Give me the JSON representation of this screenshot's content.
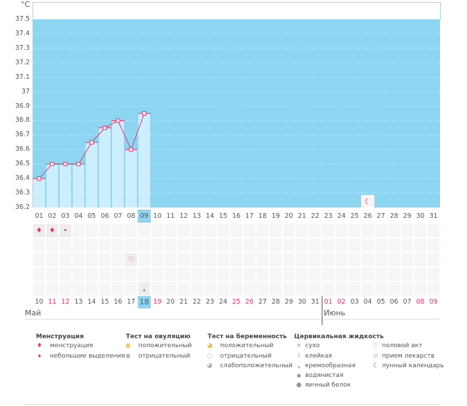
{
  "unit": "°C",
  "y_ticks": [
    "37.5",
    "37.4",
    "37.3",
    "37.2",
    "37.1",
    "37",
    "36.9",
    "36.8",
    "36.7",
    "36.6",
    "36.5",
    "36.4",
    "36.3",
    "36.2"
  ],
  "y_range": [
    36.2,
    37.5
  ],
  "days_top": [
    "01",
    "02",
    "03",
    "04",
    "05",
    "06",
    "07",
    "08",
    "09",
    "10",
    "11",
    "12",
    "13",
    "14",
    "15",
    "16",
    "17",
    "18",
    "19",
    "20",
    "21",
    "22",
    "23",
    "24",
    "25",
    "26",
    "27",
    "28",
    "29",
    "30",
    "31"
  ],
  "current_day_index": 8,
  "temperatures": [
    36.4,
    36.5,
    36.5,
    36.5,
    36.65,
    36.75,
    36.8,
    36.6,
    36.85
  ],
  "colors": {
    "plot_bg": "#8dd5f1",
    "bar": "#cdeefc",
    "line": "#e8336b",
    "weekend": "#e8336b"
  },
  "dates_bottom": [
    {
      "d": "10",
      "red": false
    },
    {
      "d": "11",
      "red": true
    },
    {
      "d": "12",
      "red": true
    },
    {
      "d": "13",
      "red": false
    },
    {
      "d": "14",
      "red": false
    },
    {
      "d": "15",
      "red": false
    },
    {
      "d": "16",
      "red": false
    },
    {
      "d": "17",
      "red": false
    },
    {
      "d": "18",
      "red": false
    },
    {
      "d": "19",
      "red": true
    },
    {
      "d": "20",
      "red": false
    },
    {
      "d": "21",
      "red": false
    },
    {
      "d": "22",
      "red": false
    },
    {
      "d": "23",
      "red": false
    },
    {
      "d": "24",
      "red": false
    },
    {
      "d": "25",
      "red": true
    },
    {
      "d": "26",
      "red": true
    },
    {
      "d": "27",
      "red": false
    },
    {
      "d": "28",
      "red": false
    },
    {
      "d": "29",
      "red": false
    },
    {
      "d": "30",
      "red": false
    },
    {
      "d": "31",
      "red": false
    },
    {
      "d": "01",
      "red": true
    },
    {
      "d": "02",
      "red": true
    },
    {
      "d": "03",
      "red": false
    },
    {
      "d": "04",
      "red": false
    },
    {
      "d": "05",
      "red": false
    },
    {
      "d": "06",
      "red": false
    },
    {
      "d": "07",
      "red": false
    },
    {
      "d": "08",
      "red": true
    },
    {
      "d": "09",
      "red": true
    }
  ],
  "month_may": "Май",
  "month_june": "Июнь",
  "markers": {
    "menstruation": [
      0,
      1
    ],
    "spotting": [
      2
    ],
    "intercourse": [
      7
    ],
    "creamy": [
      8
    ],
    "moon": [
      25
    ]
  },
  "legend": {
    "menstruation": {
      "title": "Менструация",
      "items": [
        "менструация",
        "небольшие выделения"
      ]
    },
    "ovulation": {
      "title": "Тест на овуляцию",
      "items": [
        "положительный",
        "отрицательный"
      ]
    },
    "pregnancy": {
      "title": "Тест на беременность",
      "items": [
        "положительный",
        "отрицательный",
        "слабоположительный"
      ]
    },
    "cervical": {
      "title": "Цервикальная жидкость",
      "items": [
        "сухо",
        "клейкая",
        "кремообразная",
        "водянистая",
        "яичный белок"
      ]
    },
    "other": {
      "items": [
        "половой акт",
        "прием лекарств",
        "лунный календарь"
      ]
    }
  }
}
